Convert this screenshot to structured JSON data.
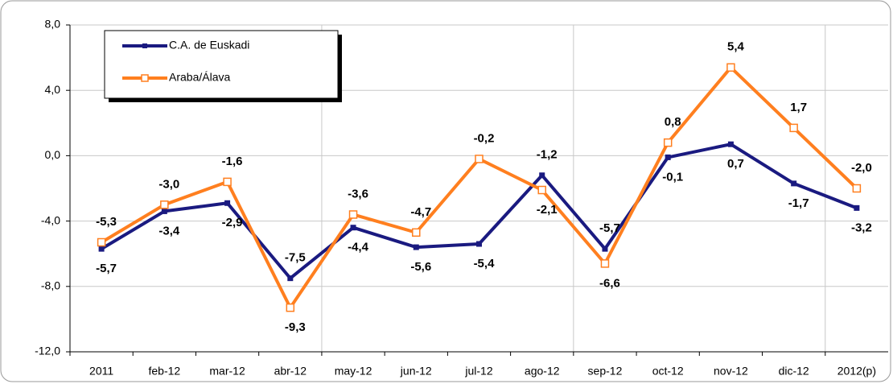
{
  "chart_data": {
    "type": "line",
    "categories": [
      "2011",
      "feb-12",
      "mar-12",
      "abr-12",
      "may-12",
      "jun-12",
      "jul-12",
      "ago-12",
      "sep-12",
      "oct-12",
      "nov-12",
      "dic-12",
      "2012(p)"
    ],
    "series": [
      {
        "name": "C.A. de Euskadi",
        "color": "#1a1a80",
        "label_color": "#2020cc",
        "values": [
          -5.7,
          -3.4,
          -2.9,
          -7.5,
          -4.4,
          -5.6,
          -5.4,
          -1.2,
          -5.7,
          -0.1,
          0.7,
          -1.7,
          -3.2
        ],
        "value_labels": [
          "-5,7",
          "-3,4",
          "-2,9",
          "-7,5",
          "-4,4",
          "-5,6",
          "-5,4",
          "-1,2",
          "-5,7",
          "-0,1",
          "0,7",
          "-1,7",
          "-3,2"
        ]
      },
      {
        "name": "Araba/Álava",
        "color": "#ff7f1f",
        "label_color": "#f07a1a",
        "values": [
          -5.3,
          -3.0,
          -1.6,
          -9.3,
          -3.6,
          -4.7,
          -0.2,
          -2.1,
          -6.6,
          0.8,
          5.4,
          1.7,
          -2.0
        ],
        "value_labels": [
          "-5,3",
          "-3,0",
          "-1,6",
          "-9,3",
          "-3,6",
          "-4,7",
          "-0,2",
          "-2,1",
          "-6,6",
          "0,8",
          "5,4",
          "1,7",
          "-2,0"
        ]
      }
    ],
    "ylim": [
      -12,
      8
    ],
    "yticks": [
      {
        "value": 8,
        "label": "8,0"
      },
      {
        "value": 4,
        "label": "4,0"
      },
      {
        "value": 0,
        "label": "0,0"
      },
      {
        "value": -4,
        "label": "-4,0"
      },
      {
        "value": -8,
        "label": "-8,0"
      },
      {
        "value": -12,
        "label": "-12,0"
      }
    ],
    "grid": true
  }
}
